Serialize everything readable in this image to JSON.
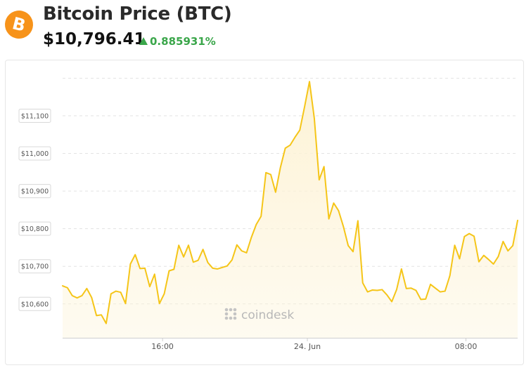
{
  "header": {
    "coin_symbol": "B",
    "title": "Bitcoin Price (BTC)",
    "price": "$10,796.41",
    "change": "0.885931%",
    "change_direction": "up",
    "accent_color": "#f7931a",
    "positive_color": "#3aa64a"
  },
  "watermark": "coindesk",
  "chart_data": {
    "type": "area",
    "title": "",
    "xlabel": "",
    "ylabel": "",
    "line_color": "#f5c518",
    "fill_color": "#fdf3d6",
    "grid": true,
    "ylim": [
      10510,
      11210
    ],
    "yticks": [
      10600,
      10700,
      10800,
      10900,
      11000,
      11100
    ],
    "ytick_labels": [
      "$10,600",
      "$10,700",
      "$10,800",
      "$10,900",
      "$11,000",
      "$11,100"
    ],
    "xlim": [
      0,
      66
    ],
    "xticks": [
      14.5,
      35.5,
      58.5
    ],
    "xtick_labels": [
      "16:00",
      "24. Jun",
      "08:00"
    ],
    "series": [
      {
        "values": [
          10648,
          10643,
          10622,
          10616,
          10622,
          10641,
          10617,
          10569,
          10571,
          10548,
          10627,
          10634,
          10631,
          10601,
          10706,
          10731,
          10694,
          10695,
          10646,
          10679,
          10601,
          10627,
          10688,
          10692,
          10756,
          10725,
          10756,
          10711,
          10716,
          10745,
          10710,
          10695,
          10693,
          10697,
          10701,
          10717,
          10757,
          10741,
          10736,
          10777,
          10811,
          10833,
          10949,
          10944,
          10897,
          10963,
          11014,
          11022,
          11043,
          11062,
          11125,
          11191,
          11093,
          10930,
          10965,
          10826,
          10868,
          10848,
          10806,
          10755,
          10739,
          10821,
          10656,
          10632,
          10637,
          10636,
          10638,
          10624,
          10606,
          10638,
          10693,
          10641,
          10642,
          10636,
          10612,
          10613,
          10652,
          10642,
          10632,
          10634,
          10675,
          10756,
          10720,
          10779,
          10787,
          10780,
          10712,
          10729,
          10718,
          10706,
          10726,
          10766,
          10741,
          10755,
          10822
        ]
      }
    ]
  }
}
